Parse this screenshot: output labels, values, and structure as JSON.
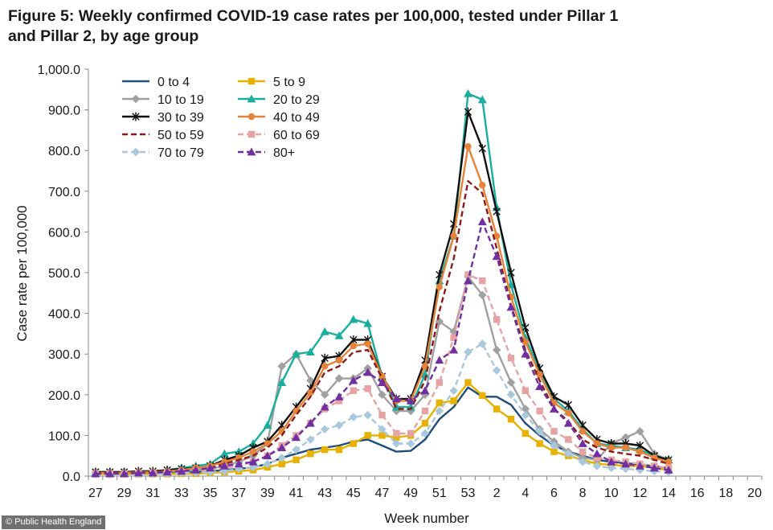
{
  "title_lines": [
    "Figure 5: Weekly confirmed COVID-19 case rates per 100,000, tested under Pillar 1",
    "and Pillar 2, by age group"
  ],
  "credit": "© Public Health England",
  "chart_data": {
    "type": "line",
    "title": "Figure 5: Weekly confirmed COVID-19 case rates per 100,000, tested under Pillar 1 and Pillar 2, by age group",
    "xlabel": "Week number",
    "ylabel": "Case rate per 100,000",
    "ylim": [
      0,
      1000
    ],
    "yticks": [
      "0.0",
      "100.0",
      "200.0",
      "300.0",
      "400.0",
      "500.0",
      "600.0",
      "700.0",
      "800.0",
      "900.0",
      "1,000.0"
    ],
    "x_tick_labels": [
      "27",
      "29",
      "31",
      "33",
      "35",
      "37",
      "39",
      "41",
      "43",
      "45",
      "47",
      "49",
      "51",
      "53",
      "2",
      "4",
      "6",
      "8",
      "10",
      "12",
      "14",
      "16",
      "18",
      "20"
    ],
    "categories": [
      "27",
      "28",
      "29",
      "30",
      "31",
      "32",
      "33",
      "34",
      "35",
      "36",
      "37",
      "38",
      "39",
      "40",
      "41",
      "42",
      "43",
      "44",
      "45",
      "46",
      "47",
      "48",
      "49",
      "50",
      "51",
      "52",
      "53",
      "1",
      "2",
      "3",
      "4",
      "5",
      "6",
      "7",
      "8",
      "9",
      "10",
      "11",
      "12",
      "13",
      "14",
      "15",
      "16",
      "17",
      "18",
      "19",
      "20"
    ],
    "grid": false,
    "legend_position": "top-left",
    "series": [
      {
        "name": "0 to 4",
        "color": "#1f4e79",
        "dash": "solid",
        "marker": "none",
        "values": [
          8,
          8,
          8,
          8,
          8,
          9,
          10,
          10,
          12,
          15,
          18,
          22,
          30,
          45,
          55,
          65,
          70,
          75,
          85,
          90,
          75,
          60,
          62,
          90,
          140,
          170,
          218,
          195,
          195,
          175,
          130,
          100,
          75,
          60,
          50,
          40,
          35,
          32,
          28,
          25,
          20,
          null,
          null,
          null,
          null,
          null,
          null
        ]
      },
      {
        "name": "5 to 9",
        "color": "#e6b100",
        "dash": "solid",
        "marker": "square",
        "values": [
          5,
          5,
          5,
          5,
          5,
          5,
          6,
          6,
          8,
          10,
          12,
          15,
          22,
          30,
          40,
          55,
          65,
          65,
          80,
          100,
          100,
          95,
          100,
          130,
          180,
          185,
          230,
          198,
          165,
          140,
          105,
          80,
          60,
          50,
          40,
          30,
          28,
          25,
          25,
          20,
          15,
          null,
          null,
          null,
          null,
          null,
          null
        ]
      },
      {
        "name": "10 to 19",
        "color": "#a0a0a0",
        "dash": "solid",
        "marker": "diamond",
        "values": [
          10,
          10,
          10,
          10,
          10,
          11,
          12,
          15,
          18,
          25,
          35,
          50,
          80,
          270,
          300,
          235,
          200,
          240,
          240,
          265,
          200,
          160,
          160,
          200,
          380,
          355,
          490,
          445,
          310,
          230,
          165,
          115,
          85,
          60,
          45,
          40,
          80,
          95,
          110,
          55,
          40,
          null,
          null,
          null,
          null,
          null,
          null
        ]
      },
      {
        "name": "20 to 29",
        "color": "#1aae9f",
        "dash": "solid",
        "marker": "triangle",
        "values": [
          10,
          10,
          10,
          12,
          12,
          15,
          20,
          25,
          30,
          55,
          60,
          80,
          125,
          230,
          300,
          305,
          355,
          345,
          385,
          375,
          245,
          170,
          170,
          250,
          480,
          590,
          940,
          925,
          660,
          470,
          340,
          260,
          190,
          160,
          115,
          80,
          75,
          70,
          65,
          50,
          40,
          null,
          null,
          null,
          null,
          null,
          null
        ]
      },
      {
        "name": "30 to 39",
        "color": "#111111",
        "dash": "solid",
        "marker": "star",
        "values": [
          10,
          10,
          10,
          12,
          12,
          15,
          18,
          20,
          25,
          40,
          50,
          70,
          85,
          125,
          170,
          215,
          290,
          295,
          335,
          335,
          245,
          190,
          190,
          285,
          495,
          620,
          895,
          805,
          650,
          500,
          365,
          265,
          195,
          175,
          125,
          90,
          80,
          80,
          75,
          50,
          40,
          null,
          null,
          null,
          null,
          null,
          null
        ]
      },
      {
        "name": "40 to 49",
        "color": "#e6833a",
        "dash": "solid",
        "marker": "circle",
        "values": [
          8,
          8,
          8,
          10,
          10,
          12,
          15,
          20,
          25,
          35,
          45,
          60,
          80,
          110,
          160,
          205,
          270,
          285,
          320,
          325,
          245,
          185,
          185,
          270,
          465,
          590,
          810,
          715,
          590,
          440,
          330,
          250,
          180,
          155,
          110,
          80,
          70,
          70,
          60,
          45,
          35,
          null,
          null,
          null,
          null,
          null,
          null
        ]
      },
      {
        "name": "50 to 59",
        "color": "#8b1a1a",
        "dash": "dashed",
        "marker": "none",
        "values": [
          8,
          8,
          8,
          8,
          10,
          10,
          12,
          15,
          20,
          30,
          40,
          50,
          70,
          100,
          150,
          195,
          255,
          270,
          305,
          310,
          240,
          165,
          165,
          235,
          405,
          535,
          725,
          695,
          560,
          420,
          310,
          235,
          165,
          135,
          90,
          70,
          60,
          55,
          50,
          40,
          30,
          null,
          null,
          null,
          null,
          null,
          null
        ]
      },
      {
        "name": "60 to 69",
        "color": "#e5a3a3",
        "dash": "dashed",
        "marker": "square",
        "values": [
          6,
          6,
          6,
          6,
          8,
          8,
          10,
          12,
          15,
          20,
          25,
          35,
          50,
          75,
          100,
          130,
          165,
          185,
          210,
          215,
          150,
          105,
          105,
          160,
          230,
          340,
          495,
          480,
          385,
          290,
          210,
          160,
          110,
          90,
          60,
          45,
          40,
          35,
          30,
          25,
          20,
          null,
          null,
          null,
          null,
          null,
          null
        ]
      },
      {
        "name": "70 to 79",
        "color": "#a9c8dc",
        "dash": "dashed",
        "marker": "diamond",
        "values": [
          5,
          5,
          5,
          5,
          5,
          6,
          8,
          8,
          10,
          12,
          18,
          22,
          30,
          45,
          65,
          90,
          115,
          125,
          145,
          150,
          115,
          80,
          80,
          105,
          160,
          210,
          305,
          325,
          260,
          200,
          150,
          110,
          75,
          55,
          35,
          25,
          20,
          18,
          15,
          12,
          10,
          null,
          null,
          null,
          null,
          null,
          null
        ]
      },
      {
        "name": "80+",
        "color": "#7030a0",
        "dash": "dashed",
        "marker": "triangle",
        "values": [
          6,
          6,
          6,
          8,
          8,
          10,
          12,
          15,
          20,
          25,
          30,
          35,
          50,
          70,
          95,
          130,
          170,
          195,
          235,
          255,
          230,
          190,
          185,
          210,
          285,
          310,
          480,
          625,
          540,
          415,
          300,
          220,
          165,
          130,
          80,
          55,
          35,
          30,
          25,
          20,
          15,
          null,
          null,
          null,
          null,
          null,
          null
        ]
      }
    ]
  }
}
